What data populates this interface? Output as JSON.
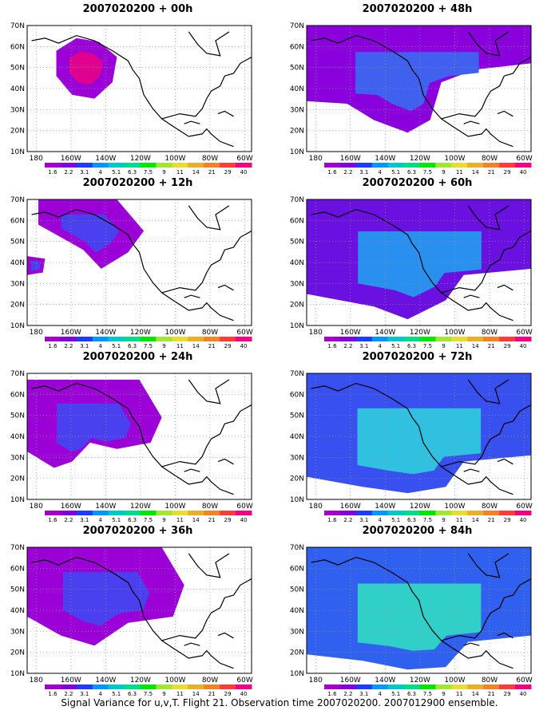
{
  "panels": [
    {
      "title": "2007020200 + 00h",
      "level": 0
    },
    {
      "title": "2007020200 + 12h",
      "level": 1
    },
    {
      "title": "2007020200 + 24h",
      "level": 2
    },
    {
      "title": "2007020200 + 36h",
      "level": 3
    },
    {
      "title": "2007020200 + 48h",
      "level": 4
    },
    {
      "title": "2007020200 + 60h",
      "level": 5
    },
    {
      "title": "2007020200 + 72h",
      "level": 6
    },
    {
      "title": "2007020200 + 84h",
      "level": 7
    }
  ],
  "lat_labels": [
    "70N",
    "60N",
    "50N",
    "40N",
    "30N",
    "20N",
    "10N"
  ],
  "lon_labels": [
    "180",
    "160W",
    "140W",
    "120W",
    "100W",
    "80W",
    "60W"
  ],
  "colorbar": {
    "labels": [
      "1.6",
      "2.2",
      "3.1",
      "4",
      "5.1",
      "6.3",
      "7.5",
      "9",
      "11",
      "14",
      "21",
      "29",
      "40"
    ],
    "colors": [
      "#a000c8",
      "#8200dc",
      "#1e3cff",
      "#0096ff",
      "#00c8c8",
      "#00dc8c",
      "#00e600",
      "#a0e632",
      "#e6dc32",
      "#e6af2d",
      "#f08228",
      "#fa3c3c",
      "#f00082"
    ]
  },
  "caption": "Signal Variance for u,v,T. Flight 21. Observation time 2007020200. 2007012900 ensemble."
}
